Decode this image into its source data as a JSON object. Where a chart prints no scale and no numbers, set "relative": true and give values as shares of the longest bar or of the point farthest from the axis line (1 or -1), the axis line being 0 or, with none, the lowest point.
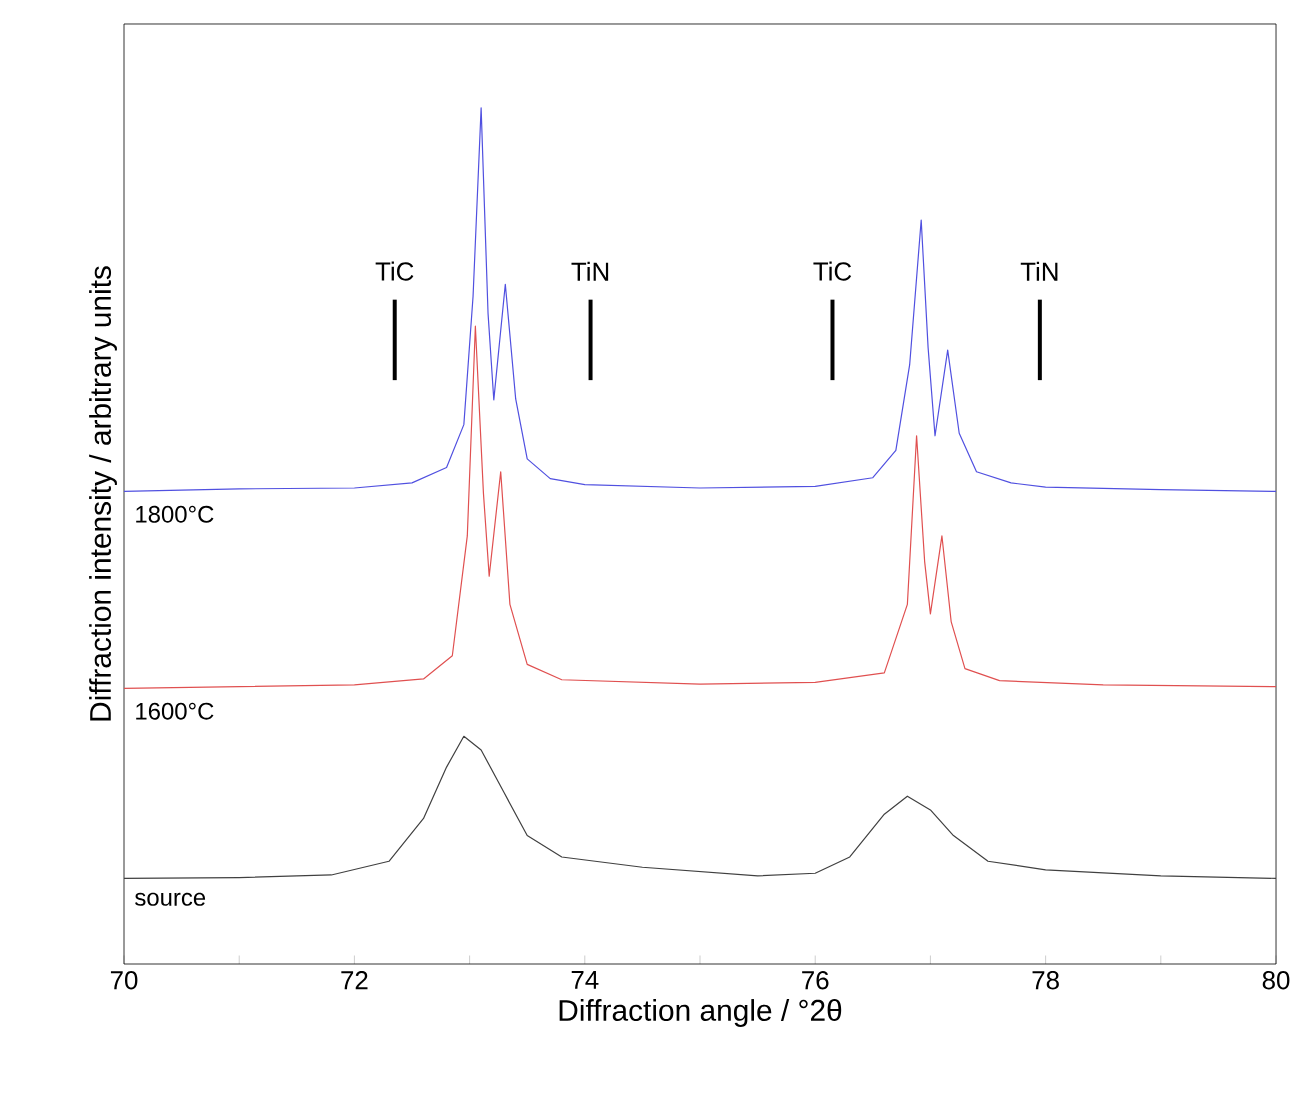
{
  "chart_data": {
    "type": "line",
    "relative": true,
    "xlabel": "Diffraction angle / °2θ",
    "ylabel": "Diffraction intensity / arbitrary units",
    "xlim": [
      70,
      80
    ],
    "xticks": [
      70,
      {
        "value": 71,
        "label": null
      },
      72,
      {
        "value": 73,
        "label": null
      },
      74,
      {
        "value": 75,
        "label": null
      },
      76,
      {
        "value": 77,
        "label": null
      },
      78,
      {
        "value": 79,
        "label": null
      },
      80
    ],
    "tick_labels": "x",
    "grid": false,
    "legend": false,
    "marker": "none",
    "line_style": "solid",
    "ref_lines": [
      {
        "axis": "x",
        "value": 72.35,
        "label": "TiC"
      },
      {
        "axis": "x",
        "value": 74.05,
        "label": "TiN"
      },
      {
        "axis": "x",
        "value": 76.15,
        "label": "TiC"
      },
      {
        "axis": "x",
        "value": 77.95,
        "label": "TiN"
      }
    ],
    "series": [
      {
        "name": "1800°C",
        "color": "#5050e0",
        "x": [
          70,
          71,
          72,
          72.5,
          72.8,
          72.95,
          73.03,
          73.1,
          73.16,
          73.21,
          73.31,
          73.4,
          73.5,
          73.7,
          74,
          75,
          76,
          76.5,
          76.7,
          76.82,
          76.92,
          76.98,
          77.04,
          77.15,
          77.25,
          77.4,
          77.7,
          78,
          79,
          80
        ],
        "values": [
          0.552,
          0.555,
          0.556,
          0.562,
          0.58,
          0.63,
          0.78,
          1.0,
          0.76,
          0.659,
          0.794,
          0.66,
          0.59,
          0.567,
          0.56,
          0.556,
          0.558,
          0.568,
          0.6,
          0.7,
          0.869,
          0.72,
          0.617,
          0.717,
          0.62,
          0.575,
          0.562,
          0.557,
          0.554,
          0.552
        ]
      },
      {
        "name": "1600°C",
        "color": "#e05050",
        "x": [
          70,
          72,
          72.6,
          72.85,
          72.98,
          73.05,
          73.12,
          73.17,
          73.27,
          73.35,
          73.5,
          73.8,
          75,
          76,
          76.6,
          76.8,
          76.88,
          76.95,
          77.0,
          77.1,
          77.18,
          77.3,
          77.6,
          78.5,
          80
        ],
        "values": [
          0.322,
          0.326,
          0.333,
          0.36,
          0.5,
          0.745,
          0.55,
          0.453,
          0.575,
          0.42,
          0.35,
          0.332,
          0.327,
          0.329,
          0.34,
          0.42,
          0.617,
          0.47,
          0.409,
          0.5,
          0.4,
          0.345,
          0.331,
          0.326,
          0.324
        ]
      },
      {
        "name": "source",
        "color": "#404040",
        "x": [
          70,
          71,
          71.8,
          72.3,
          72.6,
          72.8,
          72.95,
          73.1,
          73.3,
          73.5,
          73.8,
          74.5,
          75.5,
          76.0,
          76.3,
          76.6,
          76.8,
          77.0,
          77.2,
          77.5,
          78,
          79,
          80
        ],
        "values": [
          0.1,
          0.101,
          0.104,
          0.12,
          0.17,
          0.23,
          0.266,
          0.25,
          0.2,
          0.15,
          0.125,
          0.113,
          0.103,
          0.106,
          0.125,
          0.175,
          0.196,
          0.18,
          0.15,
          0.12,
          0.11,
          0.103,
          0.1
        ]
      }
    ]
  }
}
